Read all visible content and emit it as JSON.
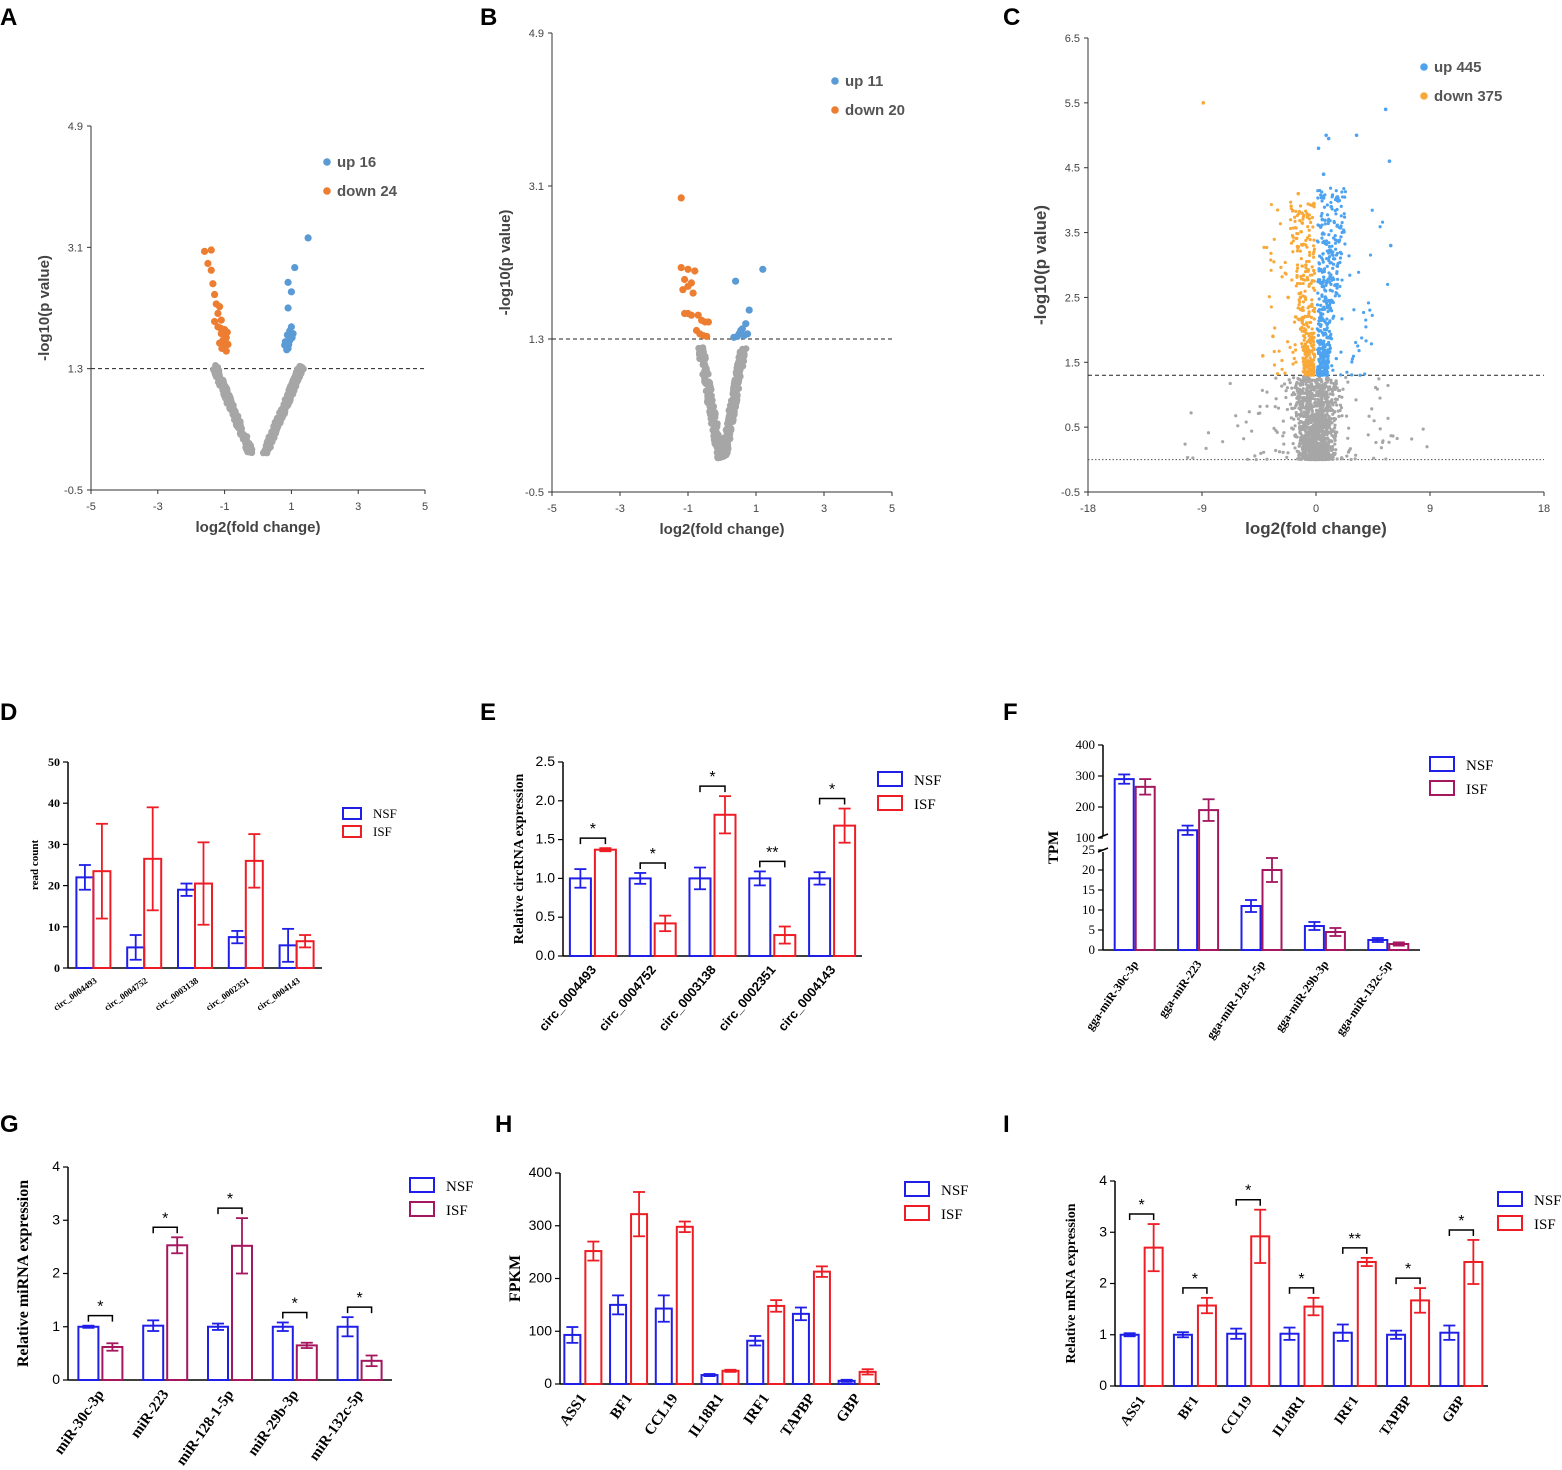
{
  "panels": [
    "A",
    "B",
    "C",
    "D",
    "E",
    "F",
    "G",
    "H",
    "I"
  ],
  "colors": {
    "up_blue": "#5b9bd5",
    "down_orange": "#ed7d31",
    "ns_grey": "#a6a6a6",
    "c_up": "#4da3ef",
    "c_down": "#f9a938",
    "nsf": "#1f1fe8",
    "isf_red": "#ee1c24",
    "isf_purple": "#a4175f"
  },
  "chart_data": [
    {
      "panel": "A",
      "type": "scatter",
      "title": "",
      "xlabel": "log2(fold change)",
      "ylabel": "-log10(p value)",
      "xlim": [
        -5,
        5
      ],
      "ylim": [
        -0.5,
        4.9
      ],
      "xticks": [
        "-5",
        "-3",
        "-1",
        "1",
        "3",
        "5"
      ],
      "yticks": [
        "-0.5",
        "1.3",
        "3.1",
        "4.9"
      ],
      "threshold": 1.3,
      "legend": [
        {
          "label": "up 16",
          "color": "up_blue"
        },
        {
          "label": "down 24",
          "color": "down_orange"
        }
      ],
      "up": [
        [
          1.5,
          3.24
        ],
        [
          1.1,
          2.8
        ],
        [
          0.9,
          2.58
        ],
        [
          1.0,
          2.44
        ],
        [
          0.9,
          2.2
        ],
        [
          1.0,
          1.92
        ],
        [
          0.95,
          1.86
        ],
        [
          0.88,
          1.8
        ],
        [
          0.82,
          1.7
        ],
        [
          0.95,
          1.72
        ],
        [
          0.9,
          1.6
        ],
        [
          0.8,
          1.65
        ],
        [
          1.02,
          1.76
        ],
        [
          0.92,
          1.66
        ],
        [
          0.86,
          1.58
        ],
        [
          1.05,
          1.82
        ]
      ],
      "down": [
        [
          -1.6,
          3.04
        ],
        [
          -1.4,
          3.06
        ],
        [
          -1.5,
          2.86
        ],
        [
          -1.4,
          2.76
        ],
        [
          -1.35,
          2.56
        ],
        [
          -1.3,
          2.4
        ],
        [
          -1.25,
          2.26
        ],
        [
          -1.15,
          2.22
        ],
        [
          -1.2,
          2.12
        ],
        [
          -1.1,
          2.02
        ],
        [
          -1.2,
          1.92
        ],
        [
          -1.0,
          1.88
        ],
        [
          -1.1,
          1.82
        ],
        [
          -0.95,
          1.76
        ],
        [
          -1.05,
          1.72
        ],
        [
          -0.9,
          1.66
        ],
        [
          -1.0,
          1.62
        ],
        [
          -0.95,
          1.56
        ],
        [
          -1.15,
          1.68
        ],
        [
          -0.92,
          1.84
        ],
        [
          -1.12,
          1.9
        ],
        [
          -1.3,
          2.0
        ],
        [
          -0.98,
          1.7
        ],
        [
          -1.08,
          1.6
        ]
      ]
    },
    {
      "panel": "B",
      "type": "scatter",
      "title": "",
      "xlabel": "log2(fold change)",
      "ylabel": "-log10(p value)",
      "xlim": [
        -5,
        5
      ],
      "ylim": [
        -0.5,
        4.9
      ],
      "xticks": [
        "-5",
        "-3",
        "-1",
        "1",
        "3",
        "5"
      ],
      "yticks": [
        "-0.5",
        "1.3",
        "3.1",
        "4.9"
      ],
      "threshold": 1.3,
      "legend": [
        {
          "label": "up 11",
          "color": "up_blue"
        },
        {
          "label": "down 20",
          "color": "down_orange"
        }
      ],
      "up": [
        [
          1.2,
          2.12
        ],
        [
          0.4,
          1.98
        ],
        [
          0.8,
          1.64
        ],
        [
          0.7,
          1.48
        ],
        [
          0.6,
          1.42
        ],
        [
          0.55,
          1.4
        ],
        [
          0.5,
          1.36
        ],
        [
          0.75,
          1.36
        ],
        [
          0.45,
          1.33
        ],
        [
          0.65,
          1.34
        ],
        [
          0.35,
          1.32
        ]
      ],
      "down": [
        [
          -1.2,
          2.96
        ],
        [
          -1.2,
          2.14
        ],
        [
          -1.0,
          2.12
        ],
        [
          -0.8,
          2.1
        ],
        [
          -1.1,
          2.0
        ],
        [
          -0.9,
          1.96
        ],
        [
          -1.0,
          1.92
        ],
        [
          -1.15,
          1.88
        ],
        [
          -0.85,
          1.84
        ],
        [
          -1.0,
          1.6
        ],
        [
          -1.1,
          1.6
        ],
        [
          -0.9,
          1.58
        ],
        [
          -0.7,
          1.58
        ],
        [
          -0.6,
          1.52
        ],
        [
          -0.5,
          1.5
        ],
        [
          -0.4,
          1.5
        ],
        [
          -0.75,
          1.4
        ],
        [
          -0.65,
          1.36
        ],
        [
          -0.55,
          1.34
        ],
        [
          -0.45,
          1.33
        ]
      ]
    },
    {
      "panel": "C",
      "type": "scatter",
      "title": "",
      "xlabel": "log2(fold change)",
      "ylabel": "-log10(p value)",
      "xlim": [
        -18,
        18
      ],
      "ylim": [
        -0.5,
        6.5
      ],
      "xticks": [
        "-18",
        "-9",
        "0",
        "9",
        "18"
      ],
      "yticks": [
        "-0.5",
        "0.5",
        "1.5",
        "2.5",
        "3.5",
        "4.5",
        "5.5",
        "6.5"
      ],
      "threshold": 1.3,
      "baseline": 0,
      "legend": [
        {
          "label": "up 445",
          "color": "c_up"
        },
        {
          "label": "down 375",
          "color": "c_down"
        }
      ],
      "up": [
        [
          5.5,
          5.4
        ],
        [
          0.8,
          5.0
        ],
        [
          3.2,
          5.0
        ],
        [
          1.0,
          4.95
        ],
        [
          5.8,
          4.6
        ],
        [
          0.2,
          4.8
        ],
        [
          0.6,
          4.4
        ],
        [
          5.9,
          3.3
        ],
        [
          1.2,
          3.9
        ],
        [
          0.5,
          3.7
        ]
      ],
      "down": [
        [
          -8.9,
          5.5
        ],
        [
          -1.4,
          4.1
        ],
        [
          -1.1,
          3.8
        ],
        [
          -2.2,
          2.5
        ],
        [
          -3.4,
          1.9
        ],
        [
          -4.2,
          1.6
        ],
        [
          -0.8,
          3.0
        ],
        [
          -1.6,
          2.2
        ]
      ]
    },
    {
      "panel": "D",
      "type": "bar",
      "categories": [
        "circ_0004493",
        "circ_0004752",
        "circ_0003138",
        "circ_0002351",
        "circ_0004143"
      ],
      "ylabel": "read count",
      "ylim": [
        0,
        50
      ],
      "yticks": [
        "0",
        "10",
        "20",
        "30",
        "40",
        "50"
      ],
      "series": [
        {
          "name": "NSF",
          "values": [
            22,
            5,
            19,
            7.5,
            5.5
          ],
          "err": [
            3,
            3,
            1.5,
            1.5,
            4
          ]
        },
        {
          "name": "ISF",
          "values": [
            23.5,
            26.5,
            20.5,
            26,
            6.5
          ],
          "err": [
            11.5,
            12.5,
            10,
            6.5,
            1.5
          ]
        }
      ],
      "sig": []
    },
    {
      "panel": "E",
      "type": "bar",
      "categories": [
        "circ_0004493",
        "circ_0004752",
        "circ_0003138",
        "circ_0002351",
        "circ_0004143"
      ],
      "ylabel": "Relative  circRNA expression",
      "ylim": [
        0,
        2.5
      ],
      "yticks": [
        "0.0",
        "0.5",
        "1.0",
        "1.5",
        "2.0",
        "2.5"
      ],
      "series": [
        {
          "name": "NSF",
          "values": [
            1.0,
            1.0,
            1.0,
            1.0,
            1.0
          ],
          "err": [
            0.12,
            0.07,
            0.14,
            0.09,
            0.08
          ]
        },
        {
          "name": "ISF",
          "values": [
            1.37,
            0.42,
            1.82,
            0.27,
            1.68
          ],
          "err": [
            0.02,
            0.1,
            0.24,
            0.11,
            0.22
          ]
        }
      ],
      "sig": [
        "*",
        "*",
        "*",
        "**",
        "*"
      ]
    },
    {
      "panel": "F",
      "type": "bar",
      "categories": [
        "gga-miR-30c-3p",
        "gga-miR-223",
        "gga-miR-128-1-5p",
        "gga-miR-29b-3p",
        "gga-miR-132c-5p"
      ],
      "ylabel": "TPM",
      "yticks": [
        "0",
        "5",
        "10",
        "15",
        "20",
        "25",
        "100",
        "200",
        "300",
        "400"
      ],
      "series": [
        {
          "name": "NSF",
          "values": [
            290,
            125,
            11,
            6,
            2.5
          ],
          "err": [
            15,
            15,
            1.5,
            1,
            0.5
          ]
        },
        {
          "name": "ISF",
          "values": [
            265,
            190,
            20,
            4.5,
            1.5
          ],
          "err": [
            25,
            35,
            3,
            1,
            0.4
          ]
        }
      ],
      "sig": []
    },
    {
      "panel": "G",
      "type": "bar",
      "categories": [
        "miR-30c-3p",
        "miR-223",
        "miR-128-1-5p",
        "miR-29b-3p",
        "miR-132c-5p"
      ],
      "ylabel": "Relative  miRNA expression",
      "ylim": [
        0,
        4
      ],
      "yticks": [
        "0",
        "1",
        "2",
        "3",
        "4"
      ],
      "series": [
        {
          "name": "NSF",
          "values": [
            1.0,
            1.02,
            1.0,
            1.0,
            1.0
          ],
          "err": [
            0.02,
            0.1,
            0.06,
            0.08,
            0.18
          ]
        },
        {
          "name": "ISF",
          "values": [
            0.62,
            2.53,
            2.52,
            0.65,
            0.36
          ],
          "err": [
            0.07,
            0.15,
            0.52,
            0.05,
            0.1
          ]
        }
      ],
      "sig": [
        "*",
        "*",
        "*",
        "*",
        "*"
      ]
    },
    {
      "panel": "H",
      "type": "bar",
      "categories": [
        "ASS1",
        "BF1",
        "CCL19",
        "IL18R1",
        "IRF1",
        "TAPBP",
        "GBP"
      ],
      "ylabel": "FPKM",
      "ylim": [
        0,
        400
      ],
      "yticks": [
        "0",
        "100",
        "200",
        "300",
        "400"
      ],
      "series": [
        {
          "name": "NSF",
          "values": [
            93,
            150,
            143,
            17,
            82,
            133,
            6
          ],
          "err": [
            15,
            18,
            25,
            2,
            9,
            12,
            2
          ]
        },
        {
          "name": "ISF",
          "values": [
            252,
            322,
            298,
            25,
            148,
            213,
            23
          ]
        }
      ],
      "isf_err": [
        18,
        42,
        10,
        2,
        11,
        10,
        5
      ],
      "sig": []
    },
    {
      "panel": "I",
      "type": "bar",
      "categories": [
        "ASS1",
        "BF1",
        "CCL19",
        "IL18R1",
        "IRF1",
        "TAPBP",
        "GBP"
      ],
      "ylabel": "Relative mRNA expression",
      "ylim": [
        0,
        4
      ],
      "yticks": [
        "0",
        "1",
        "2",
        "3",
        "4"
      ],
      "series": [
        {
          "name": "NSF",
          "values": [
            1.0,
            1.0,
            1.02,
            1.02,
            1.04,
            1.0,
            1.04
          ],
          "err": [
            0.03,
            0.05,
            0.1,
            0.12,
            0.16,
            0.08,
            0.14
          ]
        },
        {
          "name": "ISF",
          "values": [
            2.7,
            1.57,
            2.92,
            1.55,
            2.42,
            1.67,
            2.42
          ],
          "err": [
            0.46,
            0.15,
            0.52,
            0.17,
            0.08,
            0.24,
            0.43
          ]
        }
      ],
      "sig": [
        "*",
        "*",
        "*",
        "*",
        "**",
        "*",
        "*"
      ]
    }
  ],
  "legend_labels": {
    "nsf": "NSF",
    "isf": "ISF"
  }
}
